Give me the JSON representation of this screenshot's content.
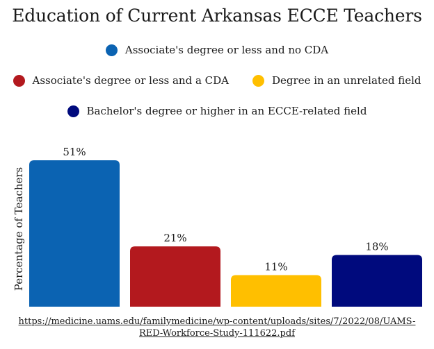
{
  "chart_data": {
    "type": "bar",
    "title": "Education of Current Arkansas ECCE Teachers",
    "xlabel": "",
    "ylabel": "Percentage of Teachers",
    "ylim": [
      0,
      51
    ],
    "grid": false,
    "legend_placement": "top",
    "categories": [
      "Associate's degree or less and no CDA",
      "Associate's degree or less and a CDA",
      "Degree in an unrelated field",
      "Bachelor's degree or higher in an ECCE-related field"
    ],
    "values": [
      51,
      21,
      11,
      18
    ],
    "value_labels": [
      "51%",
      "21%",
      "11%",
      "18%"
    ],
    "colors": [
      "#0b63b2",
      "#b3191e",
      "#ffbf00",
      "#000a7d"
    ]
  },
  "source": {
    "line1": "https://medicine.uams.edu/familymedicine/wp-content/uploads/sites/7/2022/08/UAMS-",
    "line2": "RED-Workforce-Study-111622.pdf"
  }
}
